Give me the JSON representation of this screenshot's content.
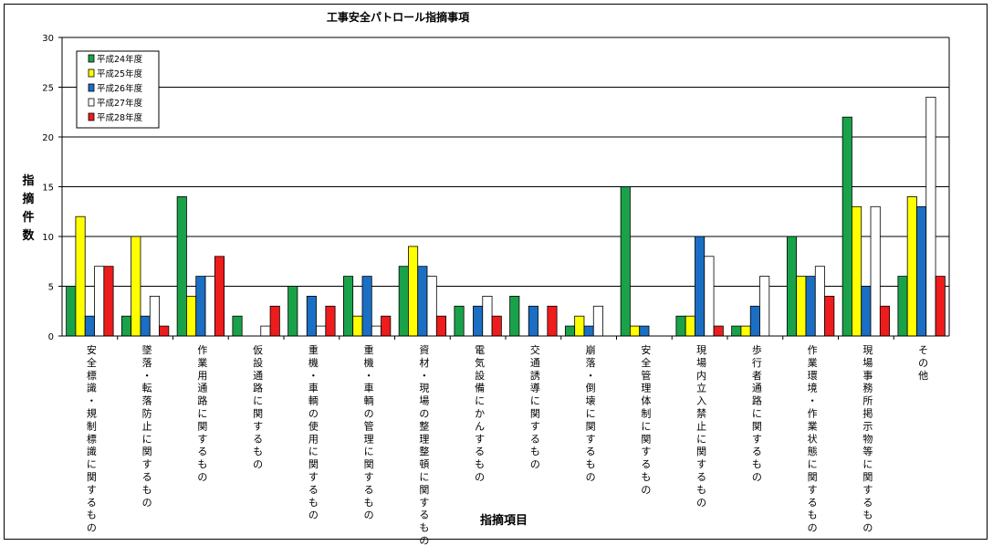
{
  "chart_data": {
    "type": "bar",
    "title": "工事安全パトロール指摘事項",
    "xlabel": "指摘項目",
    "ylabel": "指摘件数",
    "ylim": [
      0,
      30
    ],
    "yticks": [
      "0",
      "5",
      "10",
      "15",
      "20",
      "25",
      "30"
    ],
    "grid": true,
    "legend_position": "top-left",
    "categories": [
      "安全標識・規制標識に関するもの",
      "墜落・転落防止に関するもの",
      "作業用通路に関するもの",
      "仮設通路に関するもの",
      "重機・車輌の使用に関するもの",
      "重機・車輌の管理に関するもの",
      "資材・現場の整理整頓に関するもの",
      "電気設備にかんするもの",
      "交通誘導に関するもの",
      "崩落・倒壊に関するもの",
      "安全管理体制に関するもの",
      "現場内立入禁止に関するもの",
      "歩行者通路に関するもの",
      "作業環境・作業状態に関するもの",
      "現場事務所掲示物等に関するもの",
      "その他"
    ],
    "series": [
      {
        "name": "平成24年度",
        "color": "#1aa24a",
        "values": [
          5,
          2,
          14,
          2,
          5,
          6,
          7,
          3,
          4,
          1,
          15,
          2,
          1,
          10,
          22,
          6
        ]
      },
      {
        "name": "平成25年度",
        "color": "#ffff00",
        "values": [
          12,
          10,
          4,
          0,
          0,
          2,
          9,
          0,
          0,
          2,
          1,
          2,
          1,
          6,
          13,
          14
        ]
      },
      {
        "name": "平成26年度",
        "color": "#1a6fc4",
        "values": [
          2,
          2,
          6,
          0,
          4,
          6,
          7,
          3,
          3,
          1,
          1,
          10,
          3,
          6,
          5,
          13
        ]
      },
      {
        "name": "平成27年度",
        "color": "#ffffff",
        "values": [
          7,
          4,
          6,
          1,
          1,
          1,
          6,
          4,
          0,
          3,
          0,
          8,
          6,
          7,
          13,
          24
        ]
      },
      {
        "name": "平成28年度",
        "color": "#ee1c1c",
        "values": [
          7,
          1,
          8,
          3,
          3,
          2,
          2,
          2,
          3,
          0,
          0,
          1,
          0,
          4,
          3,
          6
        ]
      }
    ]
  }
}
